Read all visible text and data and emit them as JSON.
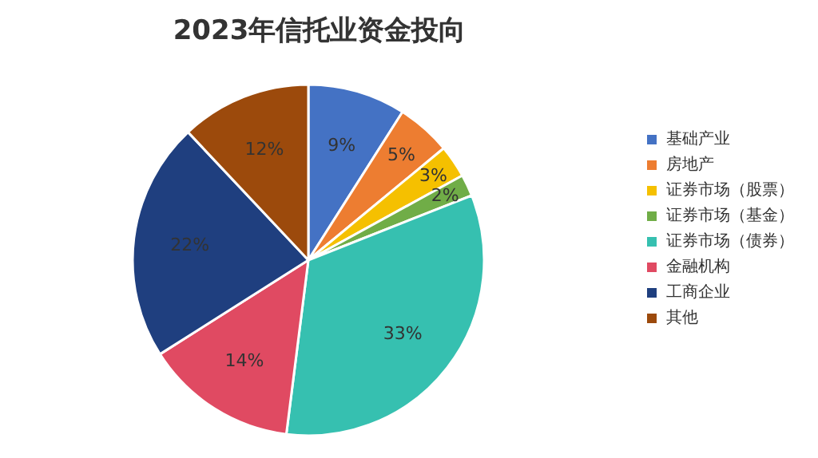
{
  "chart_data": {
    "type": "pie",
    "title": "2023年信托业资金投向",
    "categories": [
      "基础产业",
      "房地产",
      "证券市场（股票）",
      "证券市场（基金）",
      "证券市场（债券）",
      "金融机构",
      "工商企业",
      "其他"
    ],
    "values": [
      9,
      5,
      3,
      2,
      33,
      14,
      22,
      12
    ],
    "value_labels": [
      "9%",
      "5%",
      "3%",
      "2%",
      "33%",
      "14%",
      "22%",
      "12%"
    ],
    "colors": [
      "#4472c4",
      "#ed7d31",
      "#f5c000",
      "#70ad47",
      "#36c0b0",
      "#e04a62",
      "#1f3f7f",
      "#9c4a0c"
    ],
    "legend": "right"
  }
}
